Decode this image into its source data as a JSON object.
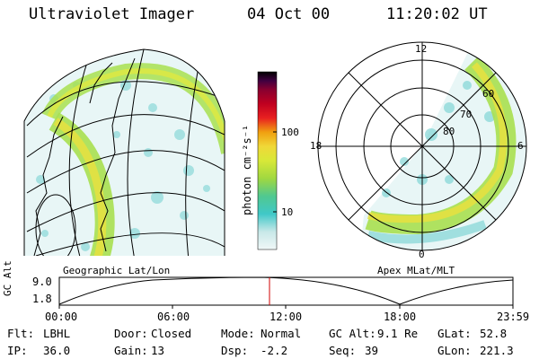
{
  "header": {
    "instrument": "Ultraviolet Imager",
    "date": "04 Oct 00",
    "time": "11:20:02 UT"
  },
  "left_panel": {
    "caption": "Geographic Lat/Lon"
  },
  "right_panel": {
    "caption": "Apex MLat/MLT",
    "mlt_labels": [
      "12",
      "18",
      "6",
      "0"
    ],
    "lat_labels": [
      "60",
      "70",
      "80"
    ]
  },
  "colorbar": {
    "unit_label": "photon cm⁻²s⁻¹",
    "ticks": [
      "100",
      "10"
    ],
    "colors": [
      "#f0f8f8",
      "#c8e8e8",
      "#40c8c8",
      "#50c890",
      "#a0d840",
      "#d8e838",
      "#f0d838",
      "#f0a010",
      "#e82020",
      "#c00020",
      "#880030",
      "#400040",
      "#000000"
    ]
  },
  "timeline": {
    "axis_label": "GC Alt",
    "y_ticks": [
      "9.0",
      "1.8"
    ],
    "x_ticks": [
      "00:00",
      "06:00",
      "12:00",
      "18:00",
      "23:59"
    ],
    "marker_color": "#d00000"
  },
  "info": {
    "flt_label": "Flt:",
    "flt_value": "LBHL",
    "ip_label": "IP:",
    "ip_value": "36.0",
    "door_label": "Door:",
    "door_value": "Closed",
    "gain_label": "Gain:",
    "gain_value": "13",
    "mode_label": "Mode:",
    "mode_value": "Normal",
    "dsp_label": "Dsp:",
    "dsp_value": "-2.2",
    "gcalt_label": "GC Alt:",
    "gcalt_value": "9.1 Re",
    "seq_label": "Seq:",
    "seq_value": "39",
    "glat_label": "GLat:",
    "glat_value": "52.8",
    "glon_label": "GLon:",
    "glon_value": "221.3"
  }
}
